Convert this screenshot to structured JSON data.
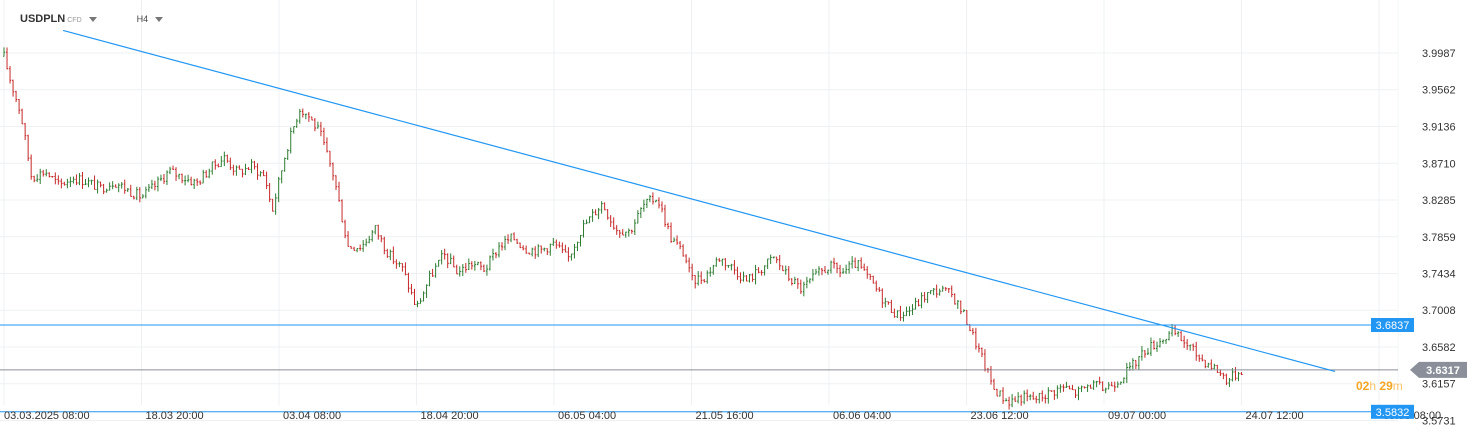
{
  "toolbar": {
    "symbol": "USDPLN",
    "instrument_type": "CFD",
    "timeframe": "H4",
    "symbol_dropdown_icon": "caret-down-icon",
    "timeframe_dropdown_icon": "caret-down-icon"
  },
  "countdown": {
    "hours": "02",
    "hours_unit": "h",
    "minutes": "29",
    "minutes_unit": "m",
    "color": "#f5a623"
  },
  "chart_data": {
    "type": "candlestick",
    "symbol": "USDPLN",
    "timeframe": "H4",
    "x_ticks": [
      "03.03.2025 08:00",
      "18.03 20:00",
      "03.04 08:00",
      "18.04 20:00",
      "06.05 04:00",
      "21.05 16:00",
      "06.06 04:00",
      "23.06 12:00",
      "09.07 00:00",
      "24.07 12:00",
      "05.08 08:00"
    ],
    "y_ticks": [
      3.9987,
      3.9562,
      3.9136,
      3.871,
      3.8285,
      3.7859,
      3.7434,
      3.7008,
      3.6582,
      3.6157,
      3.5731
    ],
    "ylim": [
      3.5731,
      4.01
    ],
    "grid": true,
    "current_price": 3.6317,
    "horizontal_lines": [
      {
        "price": 3.6837,
        "label": "3.6837",
        "color": "#2196f3"
      },
      {
        "price": 3.5832,
        "label": "3.5832",
        "color": "#2196f3"
      },
      {
        "price": 3.6317,
        "label": "3.6317",
        "color": "#8a8f99",
        "role": "current"
      }
    ],
    "trendline": {
      "from": {
        "x_tick": 0.43,
        "price": 4.0248
      },
      "to": {
        "x_tick": 9.68,
        "price": 3.6299
      },
      "color": "#2196f3"
    },
    "close_path": [
      [
        0.0,
        3.995
      ],
      [
        0.05,
        3.965
      ],
      [
        0.12,
        3.93
      ],
      [
        0.2,
        3.855
      ],
      [
        0.3,
        3.862
      ],
      [
        0.4,
        3.845
      ],
      [
        0.5,
        3.855
      ],
      [
        0.6,
        3.85
      ],
      [
        0.7,
        3.842
      ],
      [
        0.8,
        3.85
      ],
      [
        0.9,
        3.84
      ],
      [
        1.0,
        3.832
      ],
      [
        1.1,
        3.845
      ],
      [
        1.2,
        3.862
      ],
      [
        1.3,
        3.855
      ],
      [
        1.4,
        3.848
      ],
      [
        1.5,
        3.865
      ],
      [
        1.6,
        3.878
      ],
      [
        1.7,
        3.86
      ],
      [
        1.8,
        3.868
      ],
      [
        1.9,
        3.855
      ],
      [
        1.95,
        3.815
      ],
      [
        2.05,
        3.885
      ],
      [
        2.15,
        3.935
      ],
      [
        2.22,
        3.925
      ],
      [
        2.3,
        3.905
      ],
      [
        2.4,
        3.855
      ],
      [
        2.5,
        3.775
      ],
      [
        2.6,
        3.775
      ],
      [
        2.7,
        3.795
      ],
      [
        2.8,
        3.765
      ],
      [
        2.9,
        3.748
      ],
      [
        3.0,
        3.703
      ],
      [
        3.1,
        3.74
      ],
      [
        3.2,
        3.765
      ],
      [
        3.3,
        3.745
      ],
      [
        3.4,
        3.755
      ],
      [
        3.5,
        3.748
      ],
      [
        3.6,
        3.775
      ],
      [
        3.7,
        3.785
      ],
      [
        3.8,
        3.772
      ],
      [
        3.9,
        3.77
      ],
      [
        4.0,
        3.778
      ],
      [
        4.1,
        3.76
      ],
      [
        4.2,
        3.795
      ],
      [
        4.35,
        3.825
      ],
      [
        4.45,
        3.795
      ],
      [
        4.55,
        3.792
      ],
      [
        4.65,
        3.822
      ],
      [
        4.75,
        3.832
      ],
      [
        4.85,
        3.785
      ],
      [
        4.95,
        3.765
      ],
      [
        5.0,
        3.735
      ],
      [
        5.1,
        3.74
      ],
      [
        5.2,
        3.762
      ],
      [
        5.3,
        3.75
      ],
      [
        5.4,
        3.735
      ],
      [
        5.5,
        3.748
      ],
      [
        5.6,
        3.762
      ],
      [
        5.7,
        3.74
      ],
      [
        5.8,
        3.725
      ],
      [
        5.9,
        3.74
      ],
      [
        6.0,
        3.752
      ],
      [
        6.1,
        3.745
      ],
      [
        6.2,
        3.755
      ],
      [
        6.3,
        3.735
      ],
      [
        6.4,
        3.712
      ],
      [
        6.5,
        3.695
      ],
      [
        6.6,
        3.702
      ],
      [
        6.7,
        3.718
      ],
      [
        6.8,
        3.725
      ],
      [
        6.9,
        3.718
      ],
      [
        7.0,
        3.69
      ],
      [
        7.1,
        3.65
      ],
      [
        7.2,
        3.61
      ],
      [
        7.3,
        3.595
      ],
      [
        7.4,
        3.6
      ],
      [
        7.5,
        3.598
      ],
      [
        7.6,
        3.605
      ],
      [
        7.7,
        3.612
      ],
      [
        7.8,
        3.605
      ],
      [
        7.9,
        3.615
      ],
      [
        8.0,
        3.61
      ],
      [
        8.1,
        3.62
      ],
      [
        8.2,
        3.635
      ],
      [
        8.3,
        3.655
      ],
      [
        8.4,
        3.665
      ],
      [
        8.5,
        3.675
      ],
      [
        8.6,
        3.662
      ],
      [
        8.7,
        3.645
      ],
      [
        8.8,
        3.635
      ],
      [
        8.9,
        3.62
      ],
      [
        9.0,
        3.632
      ]
    ]
  }
}
